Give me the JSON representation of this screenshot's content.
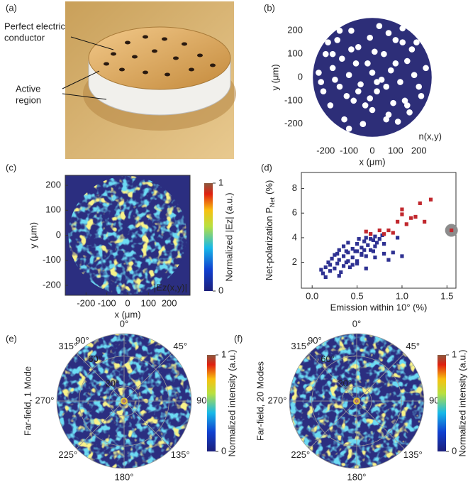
{
  "illustration": {
    "label": "(a)",
    "pec_label": [
      "Perfect electric",
      "conductor"
    ],
    "active_label": [
      "Active",
      "region"
    ]
  },
  "chart_data": [
    {
      "type": "scatter",
      "label": "(b)",
      "xlabel": "x (μm)",
      "ylabel": "y (μm)",
      "annotation": "n(x,y)",
      "xlim": [
        -280,
        280
      ],
      "ylim": [
        -280,
        280
      ],
      "xticks": [
        -200,
        -100,
        0,
        100,
        200
      ],
      "yticks": [
        -200,
        -100,
        0,
        100,
        200
      ],
      "background": "#2d2e78",
      "disk_radius": 255,
      "marker": "circle",
      "color": "#ffffff",
      "x": [
        -230,
        -210,
        -200,
        -180,
        -170,
        -150,
        -140,
        -130,
        -120,
        -100,
        -90,
        -80,
        -60,
        -50,
        -40,
        -20,
        -10,
        0,
        20,
        30,
        50,
        60,
        80,
        90,
        100,
        120,
        130,
        150,
        160,
        180,
        190,
        210,
        230,
        -220,
        -190,
        -160,
        -110,
        -70,
        -30,
        10,
        40,
        70,
        110,
        140,
        170,
        200,
        -140,
        -90,
        -40,
        20,
        70,
        130,
        -60,
        0,
        60,
        -170,
        150,
        -100,
        100,
        -10
      ],
      "y": [
        20,
        -60,
        100,
        -120,
        40,
        160,
        -40,
        80,
        -180,
        10,
        200,
        -100,
        130,
        -30,
        -200,
        60,
        170,
        -140,
        -60,
        220,
        100,
        -180,
        30,
        -110,
        160,
        -20,
        210,
        70,
        -150,
        10,
        150,
        -80,
        40,
        -20,
        150,
        -10,
        -80,
        60,
        -120,
        110,
        -10,
        190,
        -190,
        -100,
        120,
        -40,
        200,
        120,
        -200,
        -20,
        -160,
        150,
        -60,
        20,
        -40,
        100,
        -120,
        -220,
        60,
        -90
      ]
    },
    {
      "type": "heatmap",
      "label": "(c)",
      "xlabel": "x (μm)",
      "ylabel": "y (μm)",
      "annotation": "|Ez(x,y)|",
      "xlim": [
        -300,
        300
      ],
      "ylim": [
        -240,
        240
      ],
      "xticks": [
        -200,
        -100,
        0,
        100,
        200
      ],
      "yticks": [
        -200,
        -100,
        0,
        100,
        200
      ],
      "clabel": "Normalized |Ez| (a.u.)",
      "cticks": [
        0,
        1
      ]
    },
    {
      "type": "scatter",
      "label": "(d)",
      "xlabel": "Emission within 10° (%)",
      "ylabel": "Net-polarization P",
      "ylabel_sub": "Net",
      "yunit": "(%)",
      "xlim": [
        -0.12,
        1.6
      ],
      "ylim": [
        -0.1,
        9.3
      ],
      "xticks": [
        {
          "value": 0,
          "label": "0.0"
        },
        {
          "value": 0.5,
          "label": "0.5"
        },
        {
          "value": 1,
          "label": "1.0"
        },
        {
          "value": 1.5,
          "label": "1.5"
        }
      ],
      "yticks": [
        2,
        4,
        6,
        8
      ],
      "marker": "square",
      "series": [
        {
          "color": "#2e3192",
          "x": [
            0.1,
            0.12,
            0.15,
            0.18,
            0.2,
            0.22,
            0.25,
            0.25,
            0.28,
            0.3,
            0.3,
            0.32,
            0.35,
            0.35,
            0.38,
            0.4,
            0.4,
            0.42,
            0.45,
            0.45,
            0.48,
            0.5,
            0.5,
            0.52,
            0.55,
            0.55,
            0.58,
            0.6,
            0.6,
            0.62,
            0.65,
            0.65,
            0.68,
            0.7,
            0.7,
            0.72,
            0.75,
            0.78,
            0.8,
            0.85,
            0.9,
            0.95,
            1.0,
            0.15,
            0.2,
            0.3,
            0.35,
            0.4,
            0.5,
            0.55,
            0.6,
            0.65,
            0.45,
            0.5,
            0.7,
            0.28,
            0.38,
            0.58,
            0.68,
            0.8
          ],
          "y": [
            1.4,
            1.1,
            1.6,
            2.0,
            1.3,
            2.3,
            1.5,
            2.6,
            1.9,
            2.2,
            3.0,
            1.2,
            2.5,
            3.3,
            2.0,
            2.8,
            3.6,
            1.6,
            2.4,
            3.1,
            2.9,
            2.1,
            3.5,
            3.9,
            2.7,
            3.2,
            3.7,
            2.5,
            4.0,
            3.4,
            3.0,
            4.3,
            3.8,
            3.3,
            4.1,
            3.6,
            3.9,
            4.2,
            3.5,
            2.2,
            2.8,
            4.0,
            2.5,
            0.8,
            1.8,
            0.9,
            1.7,
            2.1,
            1.9,
            2.6,
            1.5,
            3.9,
            1.8,
            2.9,
            2.4,
            2.7,
            2.9,
            3.0,
            2.9,
            2.7
          ]
        },
        {
          "color": "#c1272d",
          "x": [
            0.6,
            0.65,
            0.75,
            0.8,
            0.85,
            0.9,
            0.95,
            1.0,
            1.0,
            1.05,
            1.1,
            1.15,
            1.2,
            1.25,
            1.32
          ],
          "y": [
            4.5,
            4.3,
            4.6,
            4.3,
            4.6,
            4.4,
            5.3,
            5.9,
            6.3,
            5.1,
            5.6,
            5.7,
            6.8,
            5.3,
            7.1
          ]
        },
        {
          "color": "#c1272d",
          "halo": "#8c8c8c",
          "x": [
            1.55
          ],
          "y": [
            4.6
          ]
        }
      ]
    },
    {
      "type": "polar",
      "label": "(e)",
      "ylabel": "Far-field, 1 Mode",
      "rlim": [
        0,
        90
      ],
      "theta_ticks": [
        {
          "value": 0,
          "label": "0°"
        },
        {
          "value": 45,
          "label": "45°"
        },
        {
          "value": 90,
          "label": "90°"
        },
        {
          "value": 135,
          "label": "135°"
        },
        {
          "value": 180,
          "label": "180°"
        },
        {
          "value": 225,
          "label": "225°"
        },
        {
          "value": 270,
          "label": "270°"
        },
        {
          "value": 315,
          "label": "315°"
        }
      ],
      "rticks": [
        {
          "value": 20,
          "label": "20°"
        },
        {
          "value": 60,
          "label": "60°"
        },
        {
          "value": 90,
          "label": "90°"
        }
      ],
      "clabel": "Normalized intensity (a.u.)",
      "cticks": [
        0,
        1
      ]
    },
    {
      "type": "polar",
      "label": "(f)",
      "ylabel": "Far-field, 20 Modes",
      "rlim": [
        0,
        90
      ],
      "theta_ticks": [
        {
          "value": 0,
          "label": "0°"
        },
        {
          "value": 45,
          "label": "45°"
        },
        {
          "value": 90,
          "label": "90°"
        },
        {
          "value": 135,
          "label": "135°"
        },
        {
          "value": 180,
          "label": "180°"
        },
        {
          "value": 225,
          "label": "225°"
        },
        {
          "value": 270,
          "label": "270°"
        },
        {
          "value": 315,
          "label": "315°"
        }
      ],
      "rticks": [
        {
          "value": 20,
          "label": "20°"
        },
        {
          "value": 60,
          "label": "60°"
        },
        {
          "value": 90,
          "label": "90°"
        }
      ],
      "clabel": "Normalized intensity (a.u.)",
      "cticks": [
        0,
        1
      ]
    }
  ]
}
